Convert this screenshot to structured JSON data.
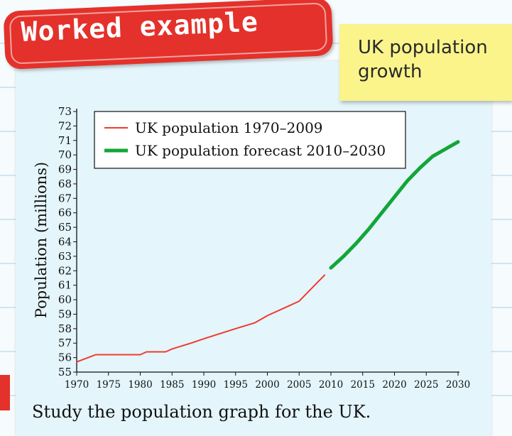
{
  "header": {
    "badge_title": "Worked example",
    "note_title": "UK population growth"
  },
  "caption": "Study the population graph for the UK.",
  "colors": {
    "badge": "#e4312b",
    "note": "#fbf48a",
    "panel": "#e4f5fb",
    "series_historic": "#ef3b2c",
    "series_forecast": "#13a538"
  },
  "chart_data": {
    "type": "line",
    "title": "",
    "xlabel": "",
    "ylabel": "Population (millions)",
    "xlim": [
      1970,
      2030
    ],
    "ylim": [
      55,
      73
    ],
    "x_ticks": [
      1970,
      1975,
      1980,
      1985,
      1990,
      1995,
      2000,
      2005,
      2010,
      2015,
      2020,
      2025,
      2030
    ],
    "y_ticks": [
      55,
      56,
      57,
      58,
      59,
      60,
      61,
      62,
      63,
      64,
      65,
      66,
      67,
      68,
      69,
      70,
      71,
      72,
      73
    ],
    "grid": false,
    "legend_position": "top-left",
    "series": [
      {
        "name": "UK population 1970–2009",
        "color": "#ef3b2c",
        "x": [
          1970,
          1973,
          1975,
          1980,
          1981,
          1984,
          1985,
          1988,
          1990,
          1995,
          1998,
          2000,
          2003,
          2005,
          2007,
          2009
        ],
        "y": [
          55.7,
          56.2,
          56.2,
          56.2,
          56.4,
          56.4,
          56.6,
          57.0,
          57.3,
          58.0,
          58.4,
          58.9,
          59.5,
          59.9,
          60.8,
          61.7
        ]
      },
      {
        "name": "UK population forecast 2010–2030",
        "color": "#13a538",
        "x": [
          2010,
          2012,
          2014,
          2016,
          2018,
          2020,
          2022,
          2024,
          2026,
          2028,
          2030
        ],
        "y": [
          62.2,
          63.0,
          63.9,
          64.9,
          66.0,
          67.1,
          68.2,
          69.1,
          69.9,
          70.4,
          70.9
        ]
      }
    ]
  }
}
